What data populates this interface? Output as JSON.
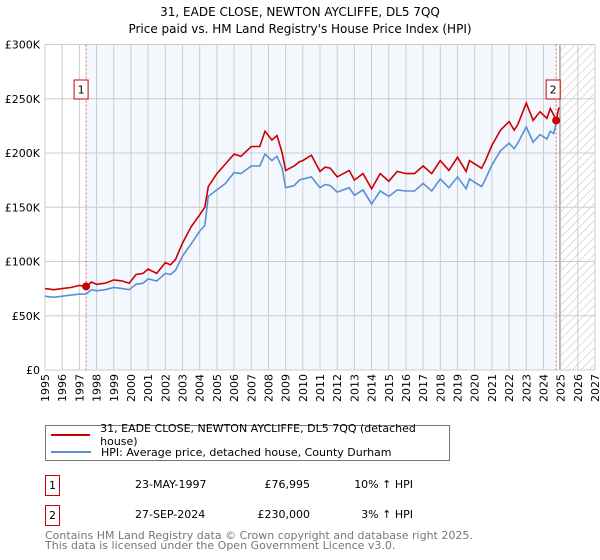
{
  "chart_data": {
    "type": "line",
    "title": "31, EADE CLOSE, NEWTON AYCLIFFE, DL5 7QQ",
    "subtitle": "Price paid vs. HM Land Registry's House Price Index (HPI)",
    "xlim": [
      1995,
      2027
    ],
    "ylim": [
      0,
      300000
    ],
    "x_ticks": [
      "1995",
      "1996",
      "1997",
      "1998",
      "1999",
      "2000",
      "2001",
      "2002",
      "2003",
      "2004",
      "2005",
      "2006",
      "2007",
      "2008",
      "2009",
      "2010",
      "2011",
      "2012",
      "2013",
      "2014",
      "2015",
      "2016",
      "2017",
      "2018",
      "2019",
      "2020",
      "2021",
      "2022",
      "2023",
      "2024",
      "2025",
      "2026",
      "2027"
    ],
    "y_ticks": [
      {
        "value": 0,
        "label": "£0"
      },
      {
        "value": 50000,
        "label": "£50K"
      },
      {
        "value": 100000,
        "label": "£100K"
      },
      {
        "value": 150000,
        "label": "£150K"
      },
      {
        "value": 200000,
        "label": "£200K"
      },
      {
        "value": 250000,
        "label": "£250K"
      },
      {
        "value": 300000,
        "label": "£300K"
      }
    ],
    "grid": true,
    "shaded_range": [
      1997.39,
      2024.74
    ],
    "forecast_hatch_from": 2024.95,
    "series": [
      {
        "name": "31, EADE CLOSE, NEWTON AYCLIFFE, DL5 7QQ (detached house)",
        "color": "#cc0000",
        "x": [
          1995,
          1995.5,
          1996,
          1996.5,
          1997,
          1997.39,
          1997.7,
          1998,
          1998.5,
          1999,
          1999.5,
          1999.9,
          2000.3,
          2000.7,
          2001,
          2001.5,
          2002,
          2002.3,
          2002.6,
          2003,
          2003.5,
          2004,
          2004.3,
          2004.5,
          2005,
          2005.5,
          2006,
          2006.4,
          2007,
          2007.5,
          2007.8,
          2008.2,
          2008.5,
          2008.8,
          2009,
          2009.5,
          2009.8,
          2010,
          2010.5,
          2011,
          2011.3,
          2011.6,
          2012,
          2012.7,
          2013,
          2013.5,
          2014,
          2014.5,
          2015,
          2015.5,
          2016,
          2016.5,
          2017,
          2017.5,
          2018,
          2018.5,
          2019,
          2019.5,
          2019.7,
          2020,
          2020.4,
          2020.6,
          2021,
          2021.5,
          2022,
          2022.3,
          2022.5,
          2023,
          2023.4,
          2023.8,
          2024.2,
          2024.4,
          2024.6,
          2024.74,
          2024.9
        ],
        "values": [
          75000,
          74000,
          75000,
          76000,
          78000,
          76995,
          81000,
          79000,
          80000,
          83000,
          82000,
          80000,
          88000,
          89000,
          93000,
          89000,
          99000,
          97000,
          102000,
          117000,
          132000,
          143000,
          150000,
          169000,
          181000,
          190000,
          199000,
          197000,
          206000,
          206000,
          220000,
          212000,
          216000,
          200000,
          184000,
          188000,
          192000,
          193000,
          198000,
          183000,
          187000,
          186000,
          178000,
          184000,
          175000,
          181000,
          167000,
          181000,
          174000,
          183000,
          181000,
          181000,
          188000,
          181000,
          193000,
          184000,
          196000,
          183000,
          193000,
          190000,
          186000,
          192000,
          207000,
          221000,
          229000,
          221000,
          226000,
          246000,
          230000,
          238000,
          232000,
          241000,
          235000,
          230000,
          242000
        ]
      },
      {
        "name": "HPI: Average price, detached house, County Durham",
        "color": "#5b8fd4",
        "x": [
          1995,
          1995.5,
          1996,
          1996.5,
          1997,
          1997.39,
          1997.7,
          1998,
          1998.5,
          1999,
          1999.5,
          1999.9,
          2000.3,
          2000.7,
          2001,
          2001.5,
          2002,
          2002.3,
          2002.6,
          2003,
          2003.5,
          2004,
          2004.3,
          2004.5,
          2005,
          2005.5,
          2006,
          2006.4,
          2007,
          2007.5,
          2007.8,
          2008.2,
          2008.5,
          2008.8,
          2009,
          2009.5,
          2009.8,
          2010,
          2010.5,
          2011,
          2011.3,
          2011.6,
          2012,
          2012.7,
          2013,
          2013.5,
          2014,
          2014.5,
          2015,
          2015.5,
          2016,
          2016.5,
          2017,
          2017.5,
          2018,
          2018.5,
          2019,
          2019.5,
          2019.7,
          2020,
          2020.4,
          2020.6,
          2021,
          2021.5,
          2022,
          2022.3,
          2022.5,
          2023,
          2023.4,
          2023.8,
          2024.2,
          2024.4,
          2024.6,
          2024.74,
          2024.9
        ],
        "values": [
          68000,
          67000,
          68000,
          69000,
          70000,
          70000,
          74000,
          73000,
          74000,
          76000,
          75000,
          74000,
          79000,
          80000,
          84000,
          82000,
          89000,
          88000,
          92000,
          105000,
          116000,
          128000,
          133000,
          160000,
          166000,
          172000,
          182000,
          181000,
          188000,
          188000,
          199000,
          193000,
          197000,
          186000,
          168000,
          170000,
          175000,
          176000,
          178000,
          168000,
          171000,
          170000,
          164000,
          168000,
          161000,
          166000,
          153000,
          165000,
          160000,
          166000,
          165000,
          165000,
          172000,
          165000,
          176000,
          168000,
          178000,
          167000,
          176000,
          173000,
          169000,
          175000,
          189000,
          202000,
          209000,
          204000,
          209000,
          224000,
          210000,
          217000,
          213000,
          220000,
          218000,
          228000,
          230000
        ]
      }
    ],
    "sales": [
      {
        "id": "1",
        "x": 1997.39,
        "value": 76995
      },
      {
        "id": "2",
        "x": 2024.74,
        "value": 230000
      }
    ]
  },
  "legend": {
    "property": "31, EADE CLOSE, NEWTON AYCLIFFE, DL5 7QQ (detached house)",
    "hpi": "HPI: Average price, detached house, County Durham"
  },
  "transactions": [
    {
      "id": "1",
      "date": "23-MAY-1997",
      "price": "£76,995",
      "hpi": "10% ↑ HPI"
    },
    {
      "id": "2",
      "date": "27-SEP-2024",
      "price": "£230,000",
      "hpi": "3% ↑ HPI"
    }
  ],
  "footer": {
    "line1": "Contains HM Land Registry data © Crown copyright and database right 2025.",
    "line2": "This data is licensed under the Open Government Licence v3.0."
  }
}
